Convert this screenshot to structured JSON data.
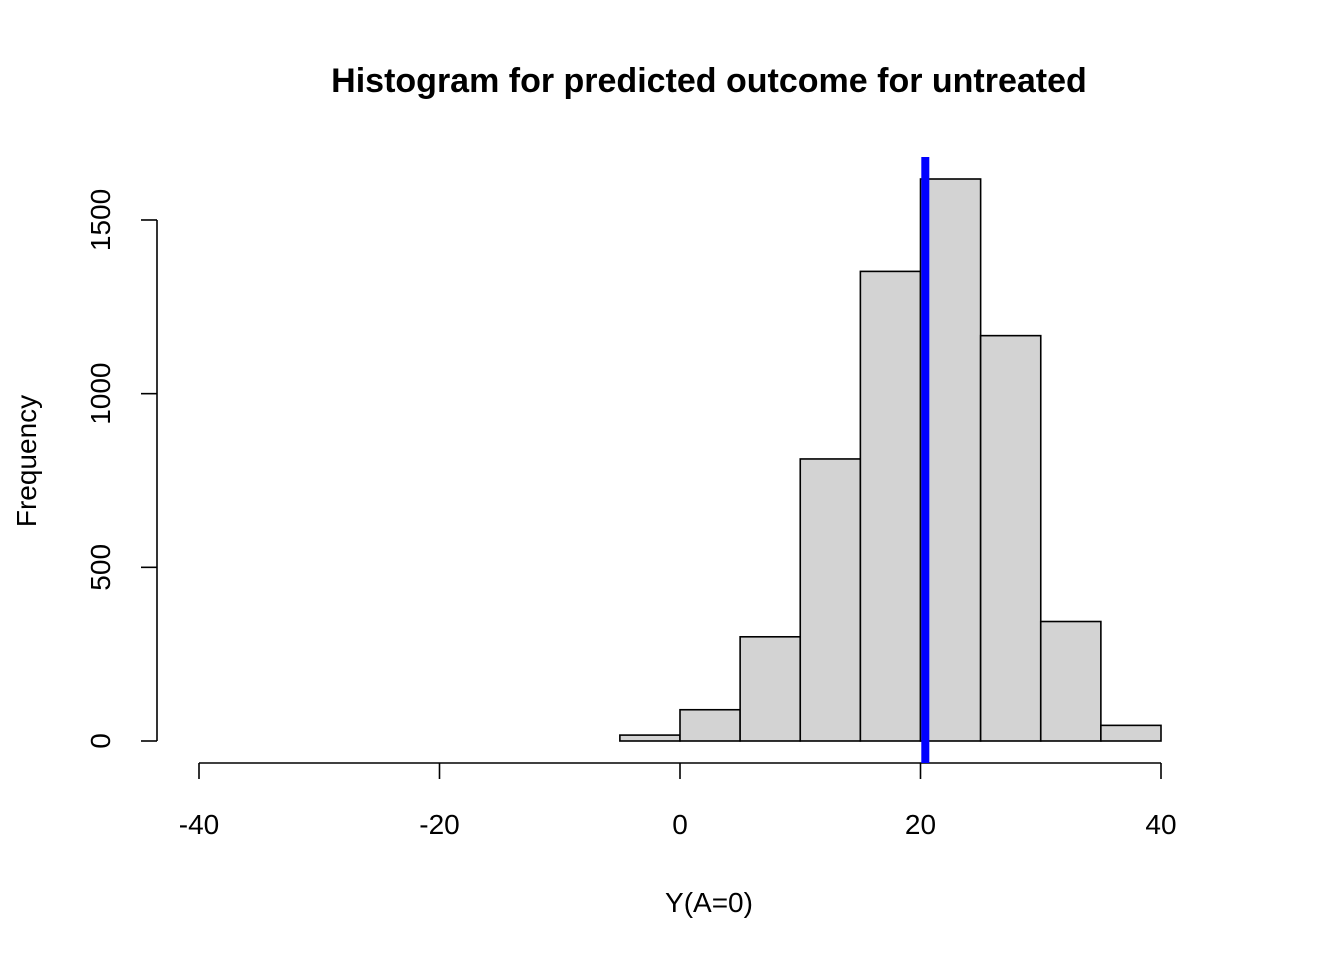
{
  "chart_data": {
    "type": "bar",
    "title": "Histogram for predicted outcome for untreated",
    "xlabel": "Y(A=0)",
    "ylabel": "Frequency",
    "bins": [
      {
        "start": -40,
        "end": -35,
        "count": 0
      },
      {
        "start": -35,
        "end": -30,
        "count": 0
      },
      {
        "start": -30,
        "end": -25,
        "count": 0
      },
      {
        "start": -25,
        "end": -20,
        "count": 0
      },
      {
        "start": -20,
        "end": -15,
        "count": 0
      },
      {
        "start": -15,
        "end": -10,
        "count": 0
      },
      {
        "start": -10,
        "end": -5,
        "count": 0
      },
      {
        "start": -5,
        "end": 0,
        "count": 17
      },
      {
        "start": 0,
        "end": 5,
        "count": 90
      },
      {
        "start": 5,
        "end": 10,
        "count": 300
      },
      {
        "start": 10,
        "end": 15,
        "count": 812
      },
      {
        "start": 15,
        "end": 20,
        "count": 1352
      },
      {
        "start": 20,
        "end": 25,
        "count": 1618
      },
      {
        "start": 25,
        "end": 30,
        "count": 1167
      },
      {
        "start": 30,
        "end": 35,
        "count": 344
      },
      {
        "start": 35,
        "end": 40,
        "count": 45
      }
    ],
    "xlim": [
      -40,
      40
    ],
    "ylim": [
      0,
      1618
    ],
    "x_ticks": [
      -40,
      -20,
      0,
      20,
      40
    ],
    "y_ticks": [
      0,
      500,
      1000,
      1500
    ],
    "vline": {
      "x": 20.4,
      "color": "#0000ff"
    },
    "bar_fill": "#d3d3d3",
    "grid": false
  }
}
